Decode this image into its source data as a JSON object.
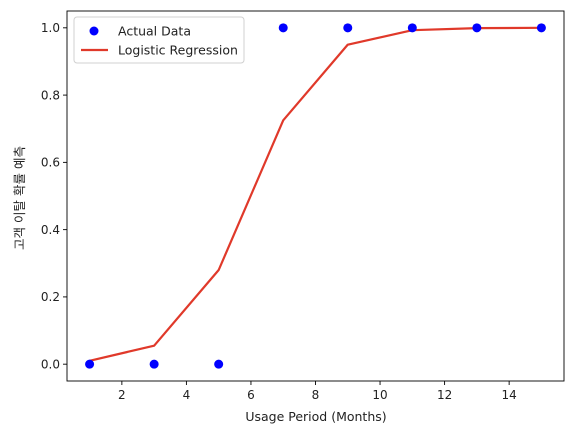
{
  "chart_data": {
    "type": "scatter",
    "title": "",
    "xlabel": "Usage Period (Months)",
    "ylabel": "고객 이탈 확률 예측",
    "xlim": [
      0.3,
      15.7
    ],
    "ylim": [
      -0.05,
      1.05
    ],
    "xticks": [
      2,
      4,
      6,
      8,
      10,
      12,
      14
    ],
    "yticks": [
      0.0,
      0.2,
      0.4,
      0.6,
      0.8,
      1.0
    ],
    "xtick_labels": [
      "2",
      "4",
      "6",
      "8",
      "10",
      "12",
      "14"
    ],
    "ytick_labels": [
      "0.0",
      "0.2",
      "0.4",
      "0.6",
      "0.8",
      "1.0"
    ],
    "grid": false,
    "legend": "top-left",
    "series": [
      {
        "name": "Actual Data",
        "kind": "scatter",
        "color": "#0000ff",
        "x": [
          1,
          3,
          5,
          7,
          9,
          11,
          13,
          15
        ],
        "y": [
          0,
          0,
          0,
          1,
          1,
          1,
          1,
          1
        ]
      },
      {
        "name": "Logistic Regression",
        "kind": "line",
        "color": "#e0392a",
        "x": [
          1,
          3,
          5,
          7,
          9,
          11,
          13,
          15
        ],
        "y": [
          0.01,
          0.055,
          0.28,
          0.725,
          0.95,
          0.993,
          0.999,
          1.0
        ]
      }
    ]
  }
}
